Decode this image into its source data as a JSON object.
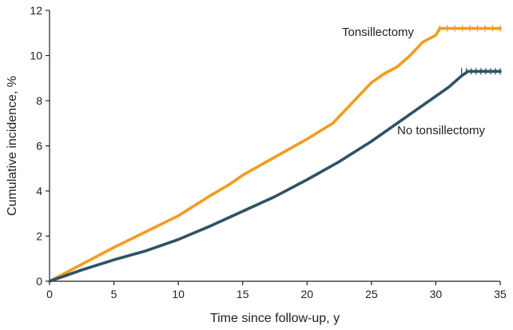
{
  "chart_data": {
    "type": "line",
    "title": "",
    "xlabel": "Time since follow-up, y",
    "ylabel": "Cumulative incidence, %",
    "xlim": [
      0,
      35
    ],
    "ylim": [
      0,
      12
    ],
    "xticks": [
      "0",
      "5",
      "10",
      "15",
      "20",
      "25",
      "30",
      "35"
    ],
    "yticks": [
      "0",
      "2",
      "4",
      "6",
      "8",
      "10",
      "12"
    ],
    "grid": false,
    "legend": "direct labels",
    "series": [
      {
        "name": "Tonsillectomy",
        "color": "#F39C1E",
        "x": [
          0,
          2.5,
          5,
          7.5,
          10,
          12.5,
          14,
          15,
          17.5,
          20,
          22,
          25,
          26,
          27,
          28,
          29,
          30,
          30.3,
          32,
          35
        ],
        "y": [
          0,
          0.75,
          1.5,
          2.2,
          2.9,
          3.8,
          4.3,
          4.7,
          5.5,
          6.3,
          7.0,
          8.8,
          9.2,
          9.5,
          10.0,
          10.6,
          10.9,
          11.2,
          11.2,
          11.2
        ]
      },
      {
        "name": "No tonsillectomy",
        "color": "#2E5365",
        "x": [
          0,
          2.5,
          5,
          7.5,
          10,
          12.5,
          15,
          17.5,
          20,
          22.5,
          25,
          27.5,
          30,
          31,
          32,
          32.5,
          35
        ],
        "y": [
          0,
          0.5,
          0.95,
          1.35,
          1.85,
          2.45,
          3.1,
          3.75,
          4.5,
          5.3,
          6.2,
          7.2,
          8.2,
          8.6,
          9.1,
          9.3,
          9.3
        ]
      }
    ]
  }
}
